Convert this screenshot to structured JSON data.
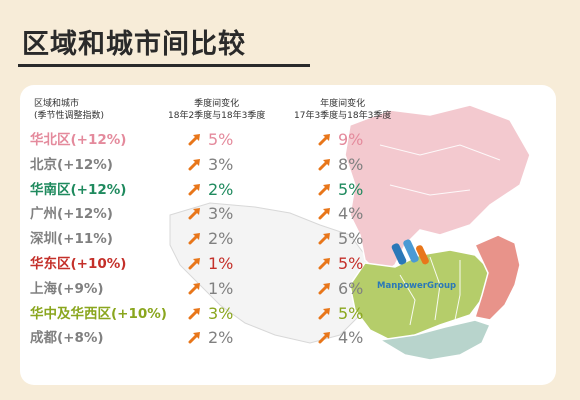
{
  "page": {
    "title": "区域和城市间比较"
  },
  "headers": {
    "col1_line1": "区域和城市",
    "col1_line2": "(季节性调整指数)",
    "col2_line1": "季度间变化",
    "col2_line2": "18年2季度与18年3季度",
    "col3_line1": "年度间变化",
    "col3_line2": "17年3季度与18年3季度"
  },
  "rows": [
    {
      "name": "华北区(+12%)",
      "q": "5%",
      "y": "9%",
      "color": "#e48a9c"
    },
    {
      "name": "北京(+12%)",
      "q": "3%",
      "y": "8%",
      "color": "#808080"
    },
    {
      "name": "华南区(+12%)",
      "q": "2%",
      "y": "5%",
      "color": "#1f8a5e"
    },
    {
      "name": "广州(+12%)",
      "q": "3%",
      "y": "4%",
      "color": "#808080"
    },
    {
      "name": "深圳(+11%)",
      "q": "2%",
      "y": "5%",
      "color": "#808080"
    },
    {
      "name": "华东区(+10%)",
      "q": "1%",
      "y": "5%",
      "color": "#c4302a"
    },
    {
      "name": "上海(+9%)",
      "q": "1%",
      "y": "6%",
      "color": "#808080"
    },
    {
      "name": "华中及华西区(+10%)",
      "q": "3%",
      "y": "5%",
      "color": "#8aa61e"
    },
    {
      "name": "成都(+8%)",
      "q": "2%",
      "y": "4%",
      "color": "#808080"
    }
  ],
  "logo": {
    "text": "ManpowerGroup"
  },
  "colors": {
    "arrow": "#e8761a",
    "background": "#f7ecd8",
    "north_region": "#f3c9cf",
    "south_region": "#b8d4cc",
    "east_region": "#e8938a",
    "central_west_region": "#b5cd6a"
  },
  "icons": {
    "arrow": "up-right-arrow-icon",
    "logo": "manpower-logo-icon"
  }
}
